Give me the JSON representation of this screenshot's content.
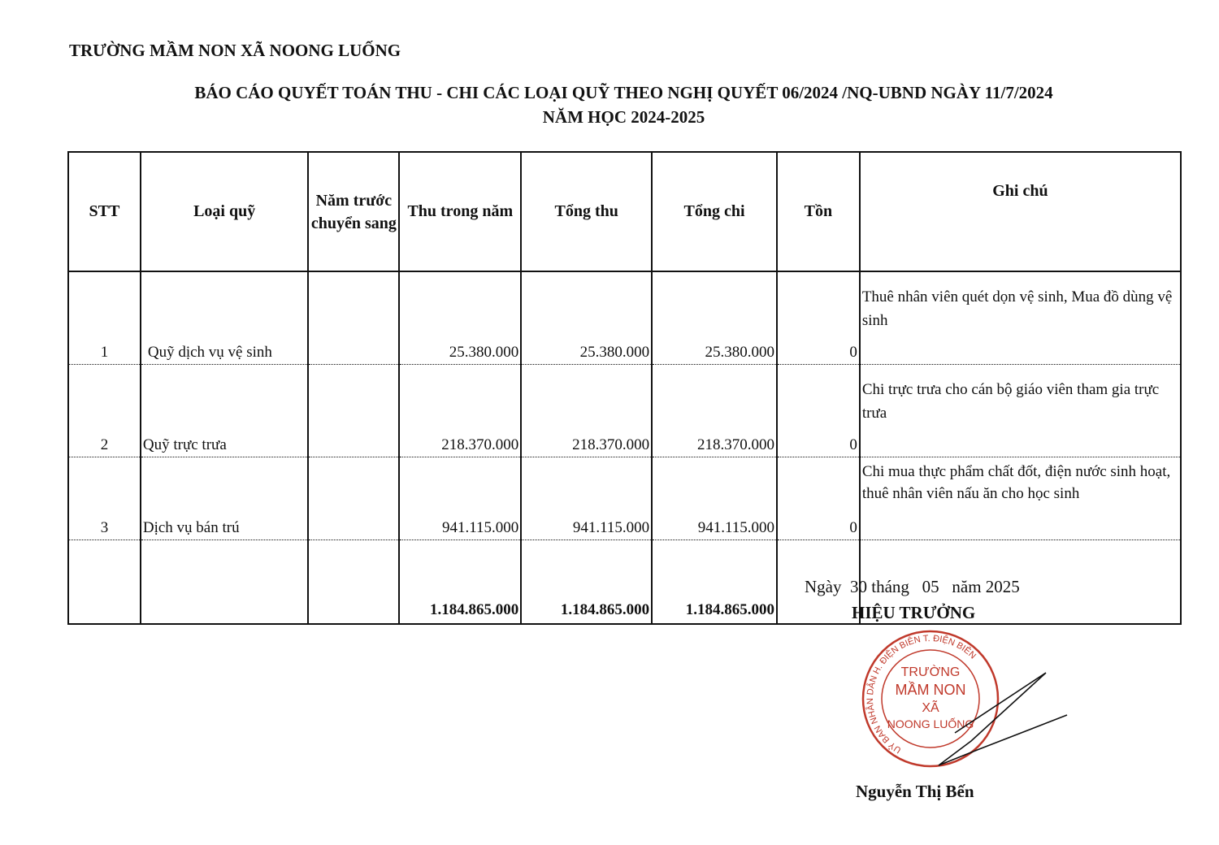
{
  "header": {
    "school": "TRƯỜNG MẦM NON XÃ NOONG LUỐNG",
    "title": "BÁO CÁO QUYẾT TOÁN  THU - CHI CÁC LOẠI QUỸ THEO NGHỊ QUYẾT 06/2024 /NQ-UBND NGÀY 11/7/2024",
    "subtitle": "NĂM HỌC 2024-2025"
  },
  "table": {
    "columns": [
      "STT",
      "Loại quỹ",
      "Năm trước chuyển sang",
      "Thu trong năm",
      "Tổng thu",
      "Tổng chi",
      "Tồn",
      "Ghi chú"
    ],
    "rows": [
      {
        "stt": "1",
        "fund": "Quỹ dịch vụ vệ sinh",
        "carry": "",
        "income": "25.380.000",
        "total_in": "25.380.000",
        "total_out": "25.380.000",
        "balance": "0",
        "note": "Thuê nhân viên quét dọn vệ sinh, Mua đồ dùng vệ sinh"
      },
      {
        "stt": "2",
        "fund": "Quỹ trực trưa",
        "carry": "",
        "income": "218.370.000",
        "total_in": "218.370.000",
        "total_out": "218.370.000",
        "balance": "0",
        "note": "Chi trực trưa cho  cán bộ giáo viên tham gia trực trưa"
      },
      {
        "stt": "3",
        "fund": "Dịch vụ bán trú",
        "carry": "",
        "income": "941.115.000",
        "total_in": "941.115.000",
        "total_out": "941.115.000",
        "balance": "0",
        "note": "Chi mua thực phẩm chất đốt, điện nước sinh hoạt, thuê nhân viên nấu ăn cho học sinh"
      }
    ],
    "total": {
      "income": "1.184.865.000",
      "total_in": "1.184.865.000",
      "total_out": "1.184.865.000"
    }
  },
  "signature": {
    "date": "Ngày  30 tháng   05   năm 2025",
    "role": "HIỆU TRƯỞNG",
    "name": "Nguyễn Thị Bến",
    "stamp": {
      "ring": "UỶ BAN NHÂN DÂN H. ĐIỆN BIÊN T. ĐIỆN BIÊN",
      "line1": "TRƯỜNG",
      "line2": "MẦM NON",
      "line3": "XÃ",
      "line4": "NOONG LUỐNG",
      "color": "#c0392b"
    }
  }
}
